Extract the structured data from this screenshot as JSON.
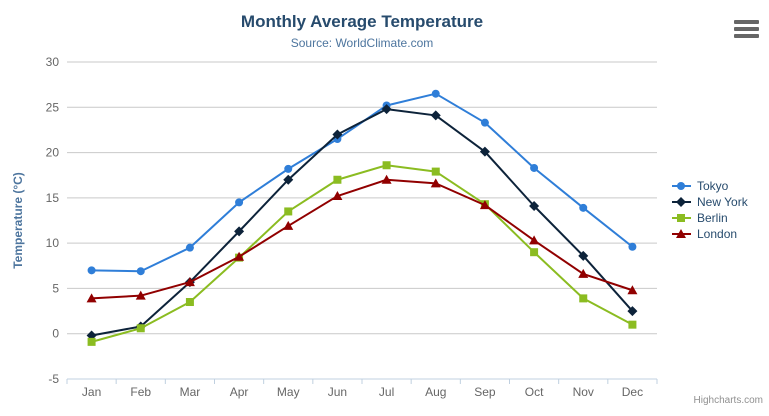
{
  "chart_data": {
    "type": "line",
    "title": "Monthly Average Temperature",
    "subtitle": "Source: WorldClimate.com",
    "ylabel": "Temperature (°C)",
    "xlabel": "",
    "categories": [
      "Jan",
      "Feb",
      "Mar",
      "Apr",
      "May",
      "Jun",
      "Jul",
      "Aug",
      "Sep",
      "Oct",
      "Nov",
      "Dec"
    ],
    "ylim": [
      -5,
      30
    ],
    "tick_interval": 5,
    "grid": true,
    "legend_position": "right",
    "series": [
      {
        "name": "Tokyo",
        "color": "#2f7ed8",
        "marker": "circle",
        "values": [
          7.0,
          6.9,
          9.5,
          14.5,
          18.2,
          21.5,
          25.2,
          26.5,
          23.3,
          18.3,
          13.9,
          9.6
        ]
      },
      {
        "name": "New York",
        "color": "#0d233a",
        "marker": "diamond",
        "values": [
          -0.2,
          0.8,
          5.7,
          11.3,
          17.0,
          22.0,
          24.8,
          24.1,
          20.1,
          14.1,
          8.6,
          2.5
        ]
      },
      {
        "name": "Berlin",
        "color": "#8bbc21",
        "marker": "square",
        "values": [
          -0.9,
          0.6,
          3.5,
          8.4,
          13.5,
          17.0,
          18.6,
          17.9,
          14.3,
          9.0,
          3.9,
          1.0
        ]
      },
      {
        "name": "London",
        "color": "#910000",
        "marker": "triangle",
        "values": [
          3.9,
          4.2,
          5.7,
          8.5,
          11.9,
          15.2,
          17.0,
          16.6,
          14.2,
          10.3,
          6.6,
          4.8
        ]
      }
    ],
    "style": {
      "title_color": "#274b6d",
      "subtitle_color": "#4d759e",
      "axis_title_color": "#4d759e",
      "axis_label_color": "#666666",
      "grid_color": "#c9c9c9",
      "axis_line_color": "#c0d0e0",
      "legend_text_color": "#274b6d",
      "burger_color": "#666666",
      "credits_color": "#909090"
    }
  },
  "credits": "Highcharts.com"
}
